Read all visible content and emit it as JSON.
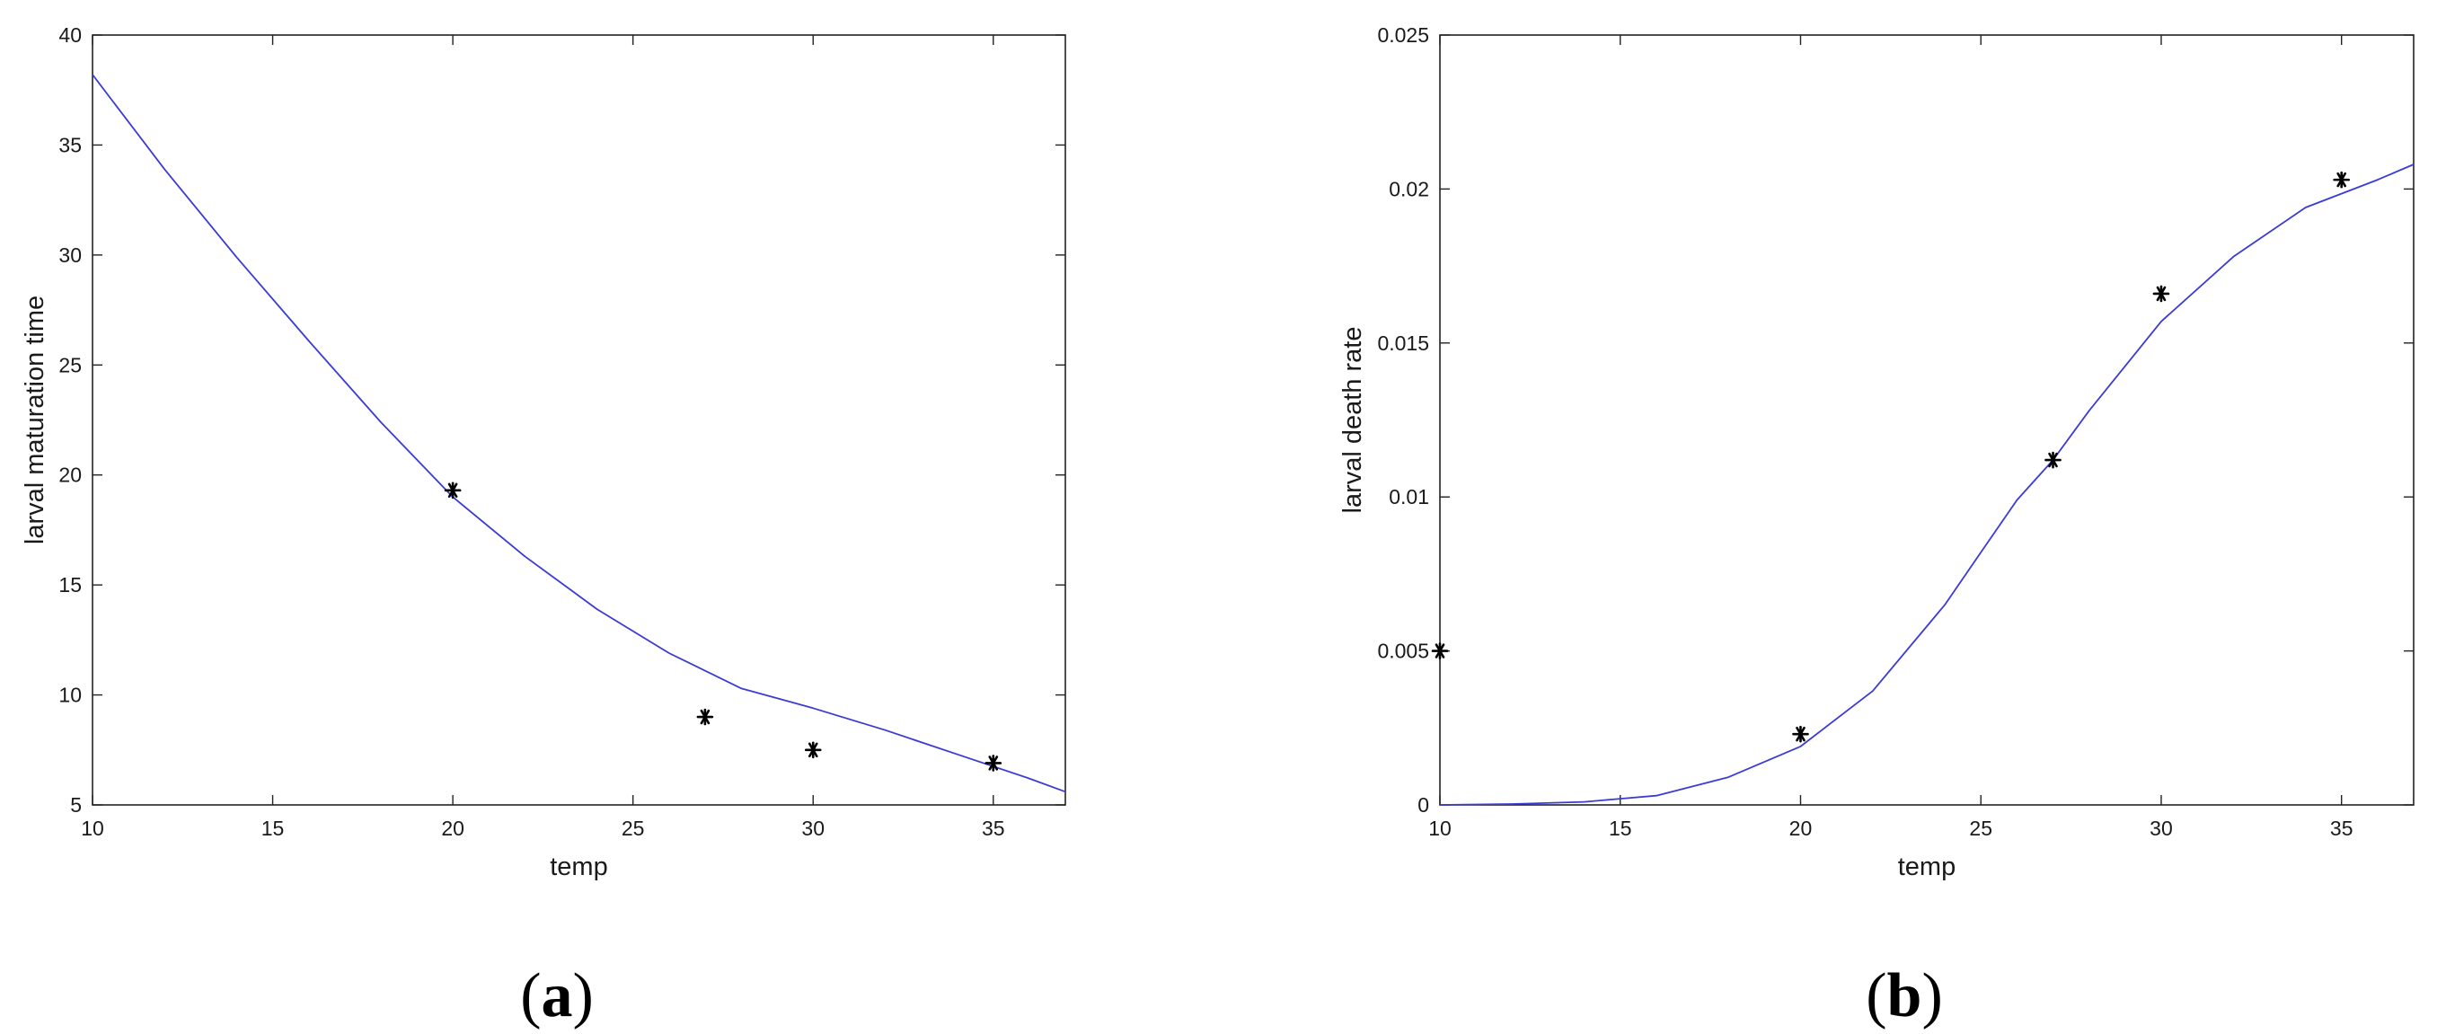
{
  "chart_data": [
    {
      "type": "scatter",
      "panel_label": "(a)",
      "panel_letter": "a",
      "xlabel": "temp",
      "ylabel": "larval maturation time",
      "xlim": [
        10,
        37
      ],
      "ylim": [
        5,
        40
      ],
      "xticks": [
        10,
        15,
        20,
        25,
        30,
        35
      ],
      "yticks": [
        5,
        10,
        15,
        20,
        25,
        30,
        35,
        40
      ],
      "xtick_labels": [
        "10",
        "15",
        "20",
        "25",
        "30",
        "35"
      ],
      "ytick_labels": [
        "5",
        "10",
        "15",
        "20",
        "25",
        "30",
        "35",
        "40"
      ],
      "grid": false,
      "series": [
        {
          "kind": "line",
          "color": "#3b3bd6",
          "x": [
            10,
            12,
            14,
            16,
            18,
            20,
            22,
            24,
            26,
            28,
            30,
            32,
            34,
            36,
            37
          ],
          "y": [
            38.2,
            33.9,
            29.9,
            26.1,
            22.4,
            19.0,
            16.3,
            13.9,
            11.9,
            10.3,
            9.4,
            8.4,
            7.3,
            6.2,
            5.6
          ]
        },
        {
          "kind": "points",
          "marker": "asterisk",
          "color": "#000000",
          "x": [
            20,
            27,
            30,
            35
          ],
          "y": [
            19.3,
            9.0,
            7.5,
            6.9
          ]
        }
      ]
    },
    {
      "type": "scatter",
      "panel_label": "(b)",
      "panel_letter": "b",
      "xlabel": "temp",
      "ylabel": "larval death rate",
      "xlim": [
        10,
        37
      ],
      "ylim": [
        0,
        0.025
      ],
      "xticks": [
        10,
        15,
        20,
        25,
        30,
        35
      ],
      "yticks": [
        0,
        0.005,
        0.01,
        0.015,
        0.02,
        0.025
      ],
      "xtick_labels": [
        "10",
        "15",
        "20",
        "25",
        "30",
        "35"
      ],
      "ytick_labels": [
        "0",
        "0.005",
        "0.01",
        "0.015",
        "0.02",
        "0.025"
      ],
      "grid": false,
      "series": [
        {
          "kind": "line",
          "color": "#3b3bd6",
          "x": [
            10,
            12,
            14,
            15,
            16,
            18,
            20,
            22,
            24,
            25,
            26,
            27,
            28,
            30,
            32,
            34,
            36,
            37
          ],
          "y": [
            0.0,
            3e-05,
            0.0001,
            0.0002,
            0.0003,
            0.0009,
            0.0019,
            0.0037,
            0.0065,
            0.0082,
            0.0099,
            0.0112,
            0.0128,
            0.0157,
            0.0178,
            0.0194,
            0.0203,
            0.0208
          ]
        },
        {
          "kind": "points",
          "marker": "asterisk",
          "color": "#000000",
          "x": [
            10,
            20,
            27,
            30,
            35
          ],
          "y": [
            0.005,
            0.0023,
            0.0112,
            0.0166,
            0.0203
          ]
        }
      ]
    }
  ]
}
